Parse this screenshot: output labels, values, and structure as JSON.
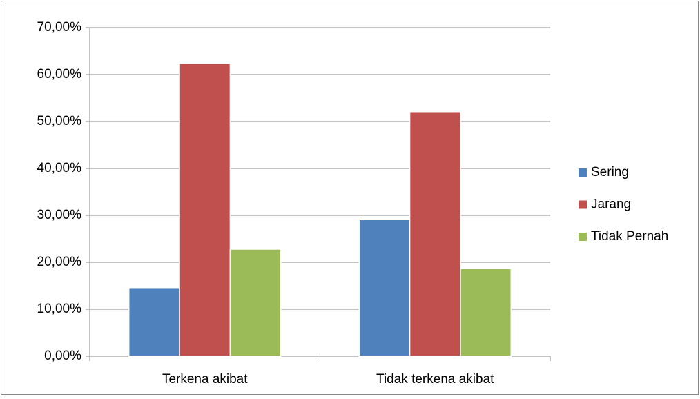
{
  "chart_data": {
    "type": "bar",
    "categories": [
      "Terkena akibat",
      "Tidak terkena akibat"
    ],
    "series": [
      {
        "name": "Sering",
        "color": "#4f81bd",
        "values": [
          14.6,
          29.1
        ]
      },
      {
        "name": "Jarang",
        "color": "#c0504d",
        "values": [
          62.4,
          52.1
        ]
      },
      {
        "name": "Tidak Pernah",
        "color": "#9bbb59",
        "values": [
          22.8,
          18.7
        ]
      }
    ],
    "ylim": [
      0,
      70
    ],
    "yticks": [
      {
        "value": 0,
        "label": "0,00%"
      },
      {
        "value": 10,
        "label": "10,00%"
      },
      {
        "value": 20,
        "label": "20,00%"
      },
      {
        "value": 30,
        "label": "30,00%"
      },
      {
        "value": 40,
        "label": "40,00%"
      },
      {
        "value": 50,
        "label": "50,00%"
      },
      {
        "value": 60,
        "label": "60,00%"
      },
      {
        "value": 70,
        "label": "70,00%"
      }
    ],
    "grid": true,
    "legend": "right"
  }
}
